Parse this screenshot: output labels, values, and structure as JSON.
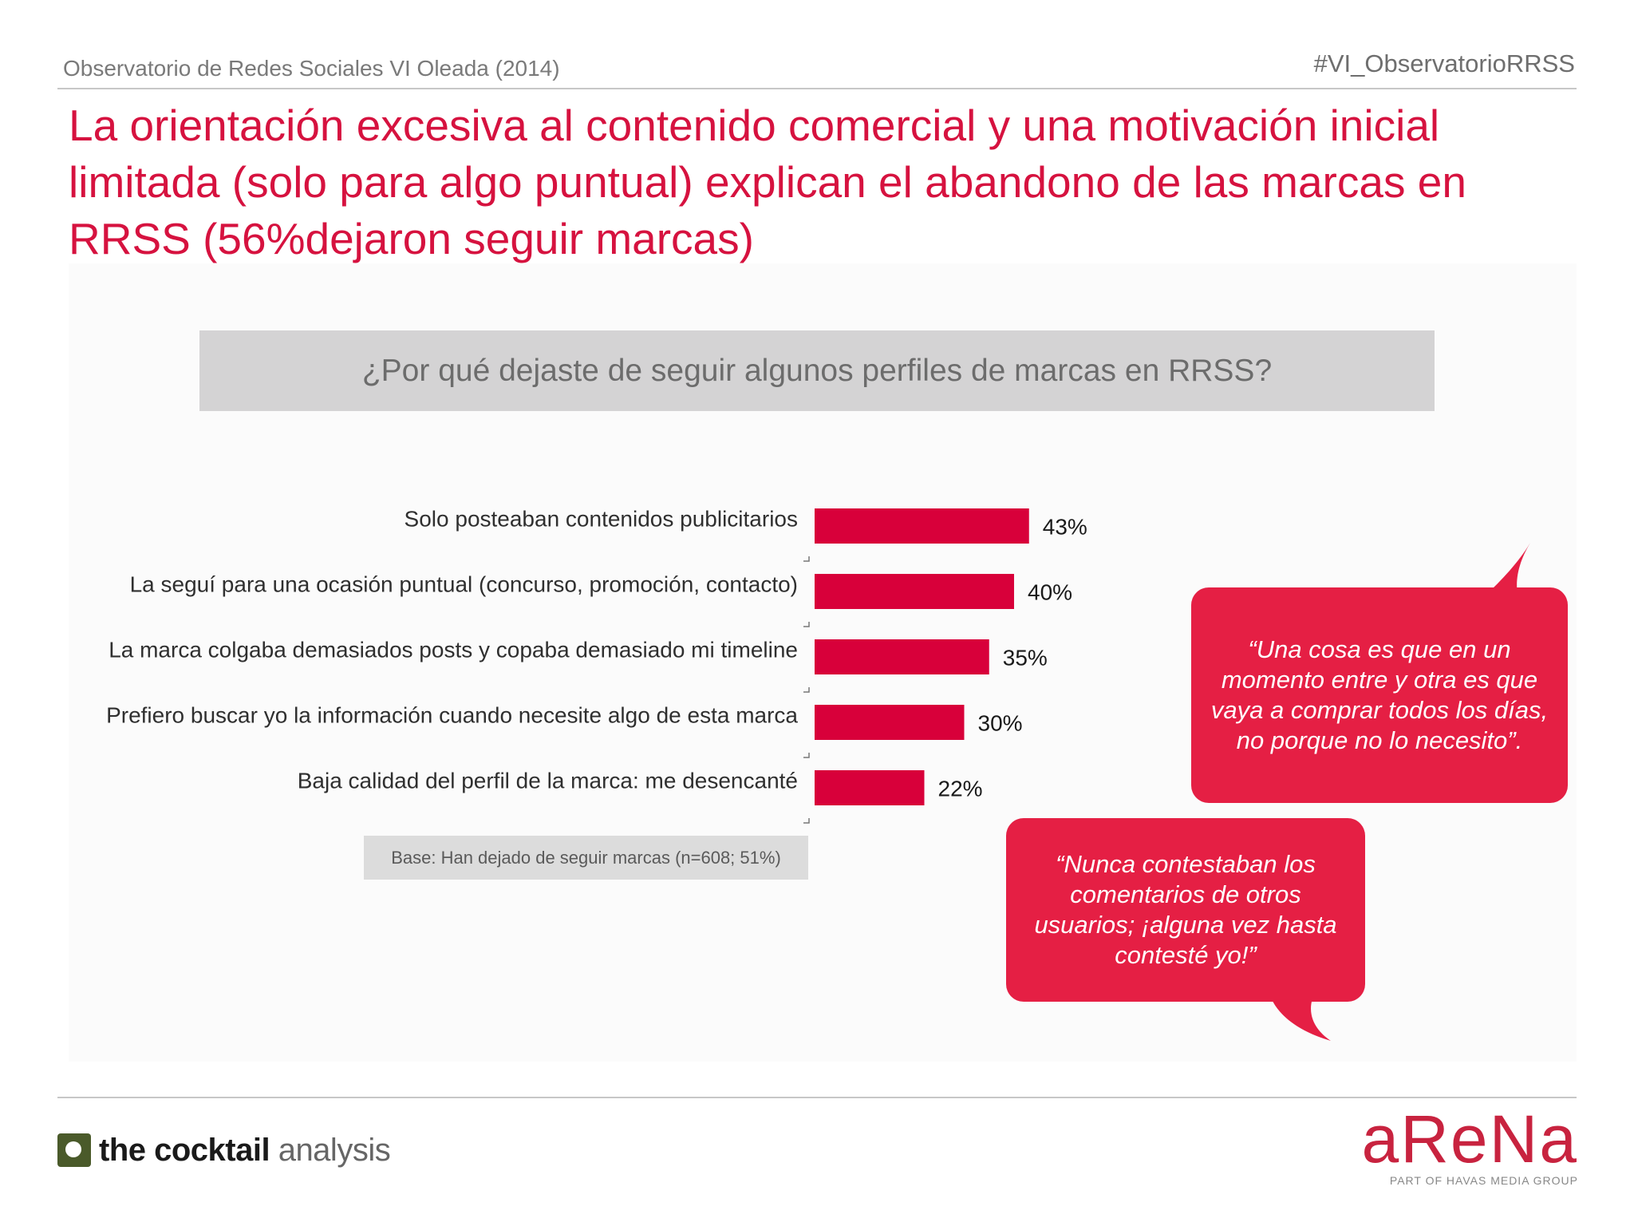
{
  "header": {
    "left": "Observatorio de Redes Sociales VI Oleada (2014)",
    "right": "#VI_ObservatorioRRSS"
  },
  "title": "La orientación excesiva al contenido comercial y una motivación inicial limitada (solo para algo puntual) explican el abandono de las marcas en RRSS (56%dejaron seguir marcas)",
  "question": "¿Por qué dejaste de seguir algunos perfiles de marcas en RRSS?",
  "chart_data": {
    "type": "bar",
    "orientation": "horizontal",
    "categories": [
      "Solo posteaban contenidos publicitarios",
      "La seguí para una ocasión puntual (concurso, promoción, contacto)",
      "La marca colgaba demasiados posts y copaba demasiado mi timeline",
      "Prefiero buscar yo la información cuando necesite algo de esta marca",
      "Baja calidad del perfil de la marca: me desencanté"
    ],
    "values": [
      43,
      40,
      35,
      30,
      22
    ],
    "value_labels": [
      "43%",
      "40%",
      "35%",
      "30%",
      "22%"
    ],
    "unit": "%",
    "bar_color": "#d8003a",
    "grid": false,
    "legend": "none"
  },
  "base_note": "Base: Han dejado de seguir marcas  (n=608; 51%)",
  "quotes": [
    "“Una cosa es que en un momento entre y otra es que vaya a comprar todos los días, no porque no lo necesito”.",
    "“Nunca contestaban los comentarios de otros usuarios; ¡alguna vez hasta contesté yo!”"
  ],
  "colors": {
    "accent": "#d6123f",
    "bubble": "#e51f44"
  },
  "logos": {
    "left_bold": "the cocktail",
    "left_light": " analysis",
    "right_word": "aReNa",
    "right_sub": "PART OF HAVAS MEDIA GROUP"
  }
}
